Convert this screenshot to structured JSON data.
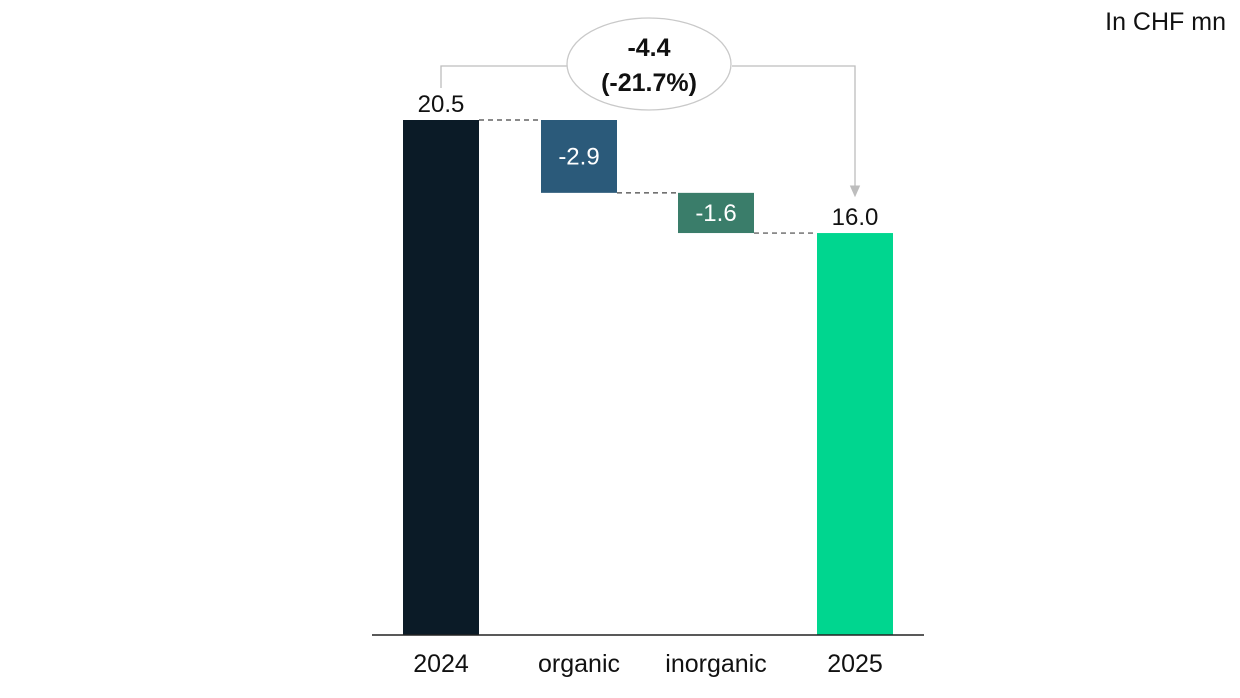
{
  "unit_label": "In CHF mn",
  "chart_data": {
    "type": "waterfall",
    "categories": [
      "2024",
      "organic",
      "inorganic",
      "2025"
    ],
    "steps": [
      {
        "category": "2024",
        "kind": "total",
        "value": 20.5,
        "label": "20.5",
        "color": "#0b1b27"
      },
      {
        "category": "organic",
        "kind": "delta",
        "value": -2.9,
        "label": "-2.9",
        "color": "#2b5a7a"
      },
      {
        "category": "inorganic",
        "kind": "delta",
        "value": -1.6,
        "label": "-1.6",
        "color": "#3a7d6a"
      },
      {
        "category": "2025",
        "kind": "total",
        "value": 16.0,
        "label": "16.0",
        "color": "#00d68f"
      }
    ],
    "change_callout": {
      "absolute": "-4.4",
      "percent": "(-21.7%)"
    },
    "ylim": [
      0,
      20.5
    ],
    "grid": false
  }
}
